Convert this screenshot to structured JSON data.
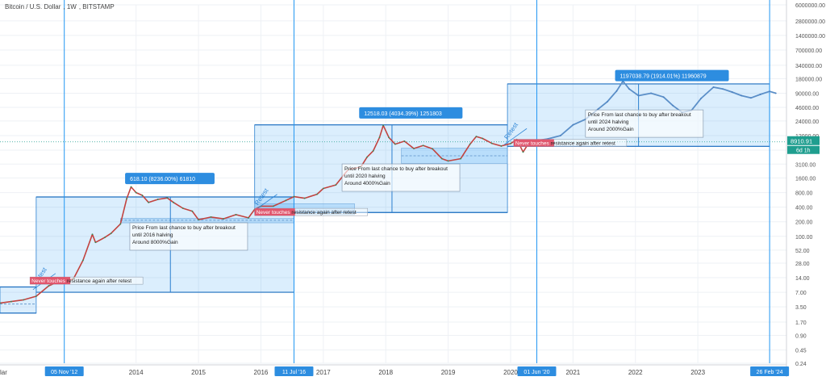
{
  "header": {
    "symbol": "Bitcoin / U.S. Dollar",
    "interval": "1W",
    "exchange": "BITSTAMP"
  },
  "chart_data": {
    "type": "line",
    "scale": "log",
    "grid": true,
    "ylim": [
      0.24,
      6000000
    ],
    "y_ticks": [
      "6000000.00",
      "2800000.00",
      "1400000.00",
      "700000.00",
      "340000.00",
      "180000.00",
      "90000.00",
      "46000.00",
      "24000.00",
      "12000.00",
      "6000.00",
      "3100.00",
      "1600.00",
      "800.00",
      "400.00",
      "200.00",
      "100.00",
      "52.00",
      "28.00",
      "14.00",
      "7.00",
      "3.50",
      "1.70",
      "0.90",
      "0.45",
      "0.24"
    ],
    "x_ticks": [
      "2014",
      "2015",
      "2016",
      "2017",
      "2018",
      "2019",
      "2020",
      "2021",
      "2022",
      "2023"
    ],
    "x_tick_partial": "3",
    "x_left_partial": "lar",
    "x_range": [
      2011.82,
      2024.42
    ],
    "date_markers": [
      {
        "label": "05 Nov '12",
        "x": 2012.85
      },
      {
        "label": "11 Jul '16",
        "x": 2016.53
      },
      {
        "label": "01 Jun '20",
        "x": 2020.42
      },
      {
        "label": "26 Feb '24",
        "x": 2024.15
      }
    ],
    "current_price": {
      "label": "8910.91",
      "sub": "6d 1h",
      "value": 8910.91
    },
    "series": [
      {
        "points": [
          [
            2011.82,
            4.2
          ],
          [
            2012.0,
            4.5
          ],
          [
            2012.2,
            4.9
          ],
          [
            2012.4,
            5.8
          ],
          [
            2012.6,
            9.5
          ],
          [
            2012.75,
            11.5
          ],
          [
            2012.85,
            11
          ],
          [
            2013.0,
            13.5
          ],
          [
            2013.15,
            32
          ],
          [
            2013.3,
            110
          ],
          [
            2013.35,
            75
          ],
          [
            2013.5,
            95
          ],
          [
            2013.6,
            115
          ],
          [
            2013.75,
            180
          ],
          [
            2013.85,
            600
          ],
          [
            2013.92,
            1050
          ],
          [
            2014.0,
            800
          ],
          [
            2014.1,
            700
          ],
          [
            2014.2,
            500
          ],
          [
            2014.35,
            580
          ],
          [
            2014.5,
            620
          ],
          [
            2014.6,
            500
          ],
          [
            2014.75,
            380
          ],
          [
            2014.9,
            330
          ],
          [
            2015.0,
            220
          ],
          [
            2015.2,
            250
          ],
          [
            2015.4,
            230
          ],
          [
            2015.6,
            280
          ],
          [
            2015.8,
            240
          ],
          [
            2015.9,
            360
          ],
          [
            2016.0,
            420
          ],
          [
            2016.2,
            420
          ],
          [
            2016.4,
            550
          ],
          [
            2016.53,
            660
          ],
          [
            2016.7,
            610
          ],
          [
            2016.9,
            740
          ],
          [
            2017.0,
            970
          ],
          [
            2017.2,
            1150
          ],
          [
            2017.4,
            2400
          ],
          [
            2017.6,
            2700
          ],
          [
            2017.7,
            4300
          ],
          [
            2017.8,
            5800
          ],
          [
            2017.9,
            11000
          ],
          [
            2017.96,
            19500
          ],
          [
            2018.05,
            11000
          ],
          [
            2018.15,
            8000
          ],
          [
            2018.3,
            9200
          ],
          [
            2018.45,
            6500
          ],
          [
            2018.6,
            7500
          ],
          [
            2018.75,
            6400
          ],
          [
            2018.9,
            4000
          ],
          [
            2019.0,
            3600
          ],
          [
            2019.2,
            4000
          ],
          [
            2019.35,
            8000
          ],
          [
            2019.45,
            11500
          ],
          [
            2019.55,
            10500
          ],
          [
            2019.7,
            8300
          ],
          [
            2019.85,
            7300
          ],
          [
            2020.0,
            8200
          ],
          [
            2020.1,
            10000
          ],
          [
            2020.2,
            5500
          ],
          [
            2020.3,
            8800
          ],
          [
            2020.42,
            9500
          ]
        ]
      },
      {
        "name": "projection",
        "points": [
          [
            2020.42,
            9500
          ],
          [
            2020.6,
            10300
          ],
          [
            2020.8,
            12000
          ],
          [
            2021.0,
            20000
          ],
          [
            2021.2,
            26000
          ],
          [
            2021.4,
            42000
          ],
          [
            2021.55,
            60000
          ],
          [
            2021.7,
            100000
          ],
          [
            2021.8,
            160000
          ],
          [
            2021.9,
            110000
          ],
          [
            2022.05,
            80000
          ],
          [
            2022.25,
            90000
          ],
          [
            2022.45,
            75000
          ],
          [
            2022.6,
            50000
          ],
          [
            2022.75,
            36000
          ],
          [
            2022.9,
            40000
          ],
          [
            2023.05,
            70000
          ],
          [
            2023.25,
            120000
          ],
          [
            2023.4,
            110000
          ],
          [
            2023.55,
            95000
          ],
          [
            2023.7,
            80000
          ],
          [
            2023.85,
            72000
          ],
          [
            2024.0,
            85000
          ],
          [
            2024.15,
            98000
          ],
          [
            2024.25,
            90000
          ]
        ]
      }
    ],
    "resistance_zones": [
      {
        "x0": 2011.82,
        "x1": 2012.4,
        "top": 9,
        "bottom": 2.6
      },
      {
        "x0": 2012.4,
        "x1": 2016.53,
        "top": 650,
        "bottom": 7
      },
      {
        "x0": 2015.9,
        "x1": 2019.95,
        "top": 20000,
        "bottom": 310
      },
      {
        "x0": 2019.95,
        "x1": 2024.15,
        "top": 140000,
        "bottom": 7200
      }
    ],
    "retest_zones": [
      {
        "x0": 2013.75,
        "x1": 2016.53,
        "top": 235,
        "bottom": 190
      },
      {
        "x0": 2015.9,
        "x1": 2017.5,
        "top": 470,
        "bottom": 280
      },
      {
        "x0": 2018.25,
        "x1": 2019.95,
        "top": 6600,
        "bottom": 3200
      }
    ],
    "dashed_levels": [
      {
        "x0": 2011.82,
        "x1": 2012.4,
        "y": 4.0
      },
      {
        "x0": 2013.75,
        "x1": 2016.53,
        "y": 215
      },
      {
        "x0": 2015.9,
        "x1": 2017.5,
        "y": 340
      },
      {
        "x0": 2018.25,
        "x1": 2019.95,
        "y": 4600
      }
    ],
    "vertical_ranges": [
      {
        "x": 2014.55,
        "top": 650,
        "bottom": 7
      },
      {
        "x": 2018.1,
        "top": 20000,
        "bottom": 310
      },
      {
        "x": 2022.05,
        "top": 140000,
        "bottom": 7200
      }
    ],
    "gain_labels": [
      {
        "text": "618.10 (8236.00%) 61810",
        "x": 2013.85,
        "y": 1500
      },
      {
        "text": "12518.03 (4034.39%) 1251803",
        "x": 2017.6,
        "y": 34000
      },
      {
        "text": "1197038.79 (1914.01%) 11960879",
        "x": 2021.7,
        "y": 200000
      }
    ],
    "notes": [
      {
        "lines": [
          "Price From last chance to buy after breakout",
          "until 2016 halving",
          "Around 8000%Gain"
        ],
        "x": 2013.9,
        "y": 140
      },
      {
        "lines": [
          "Price From last chance to buy after breakout",
          "until 2020 halving",
          "Around 4000%Gain"
        ],
        "x": 2017.3,
        "y": 2300
      },
      {
        "lines": [
          "Price From last chance to buy after breakout",
          "until 2024 halving",
          "Around 2000%Gain"
        ],
        "x": 2021.2,
        "y": 30000
      }
    ],
    "resistance_tags": [
      {
        "prefix": "Never touches ",
        "rest": "resistance again after retest",
        "x": 2012.3,
        "y": 11.5
      },
      {
        "prefix": "Never touches ",
        "rest": "resistance again after retest",
        "x": 2015.9,
        "y": 300
      },
      {
        "prefix": "Never touches ",
        "rest": "resistance again after retest",
        "x": 2020.05,
        "y": 8000
      }
    ],
    "retest_labels": [
      {
        "text": "Retest",
        "x": 2012.4,
        "y": 10
      },
      {
        "text": "Retest",
        "x": 2015.95,
        "y": 430
      },
      {
        "text": "Retest",
        "x": 2019.95,
        "y": 9800
      }
    ]
  }
}
